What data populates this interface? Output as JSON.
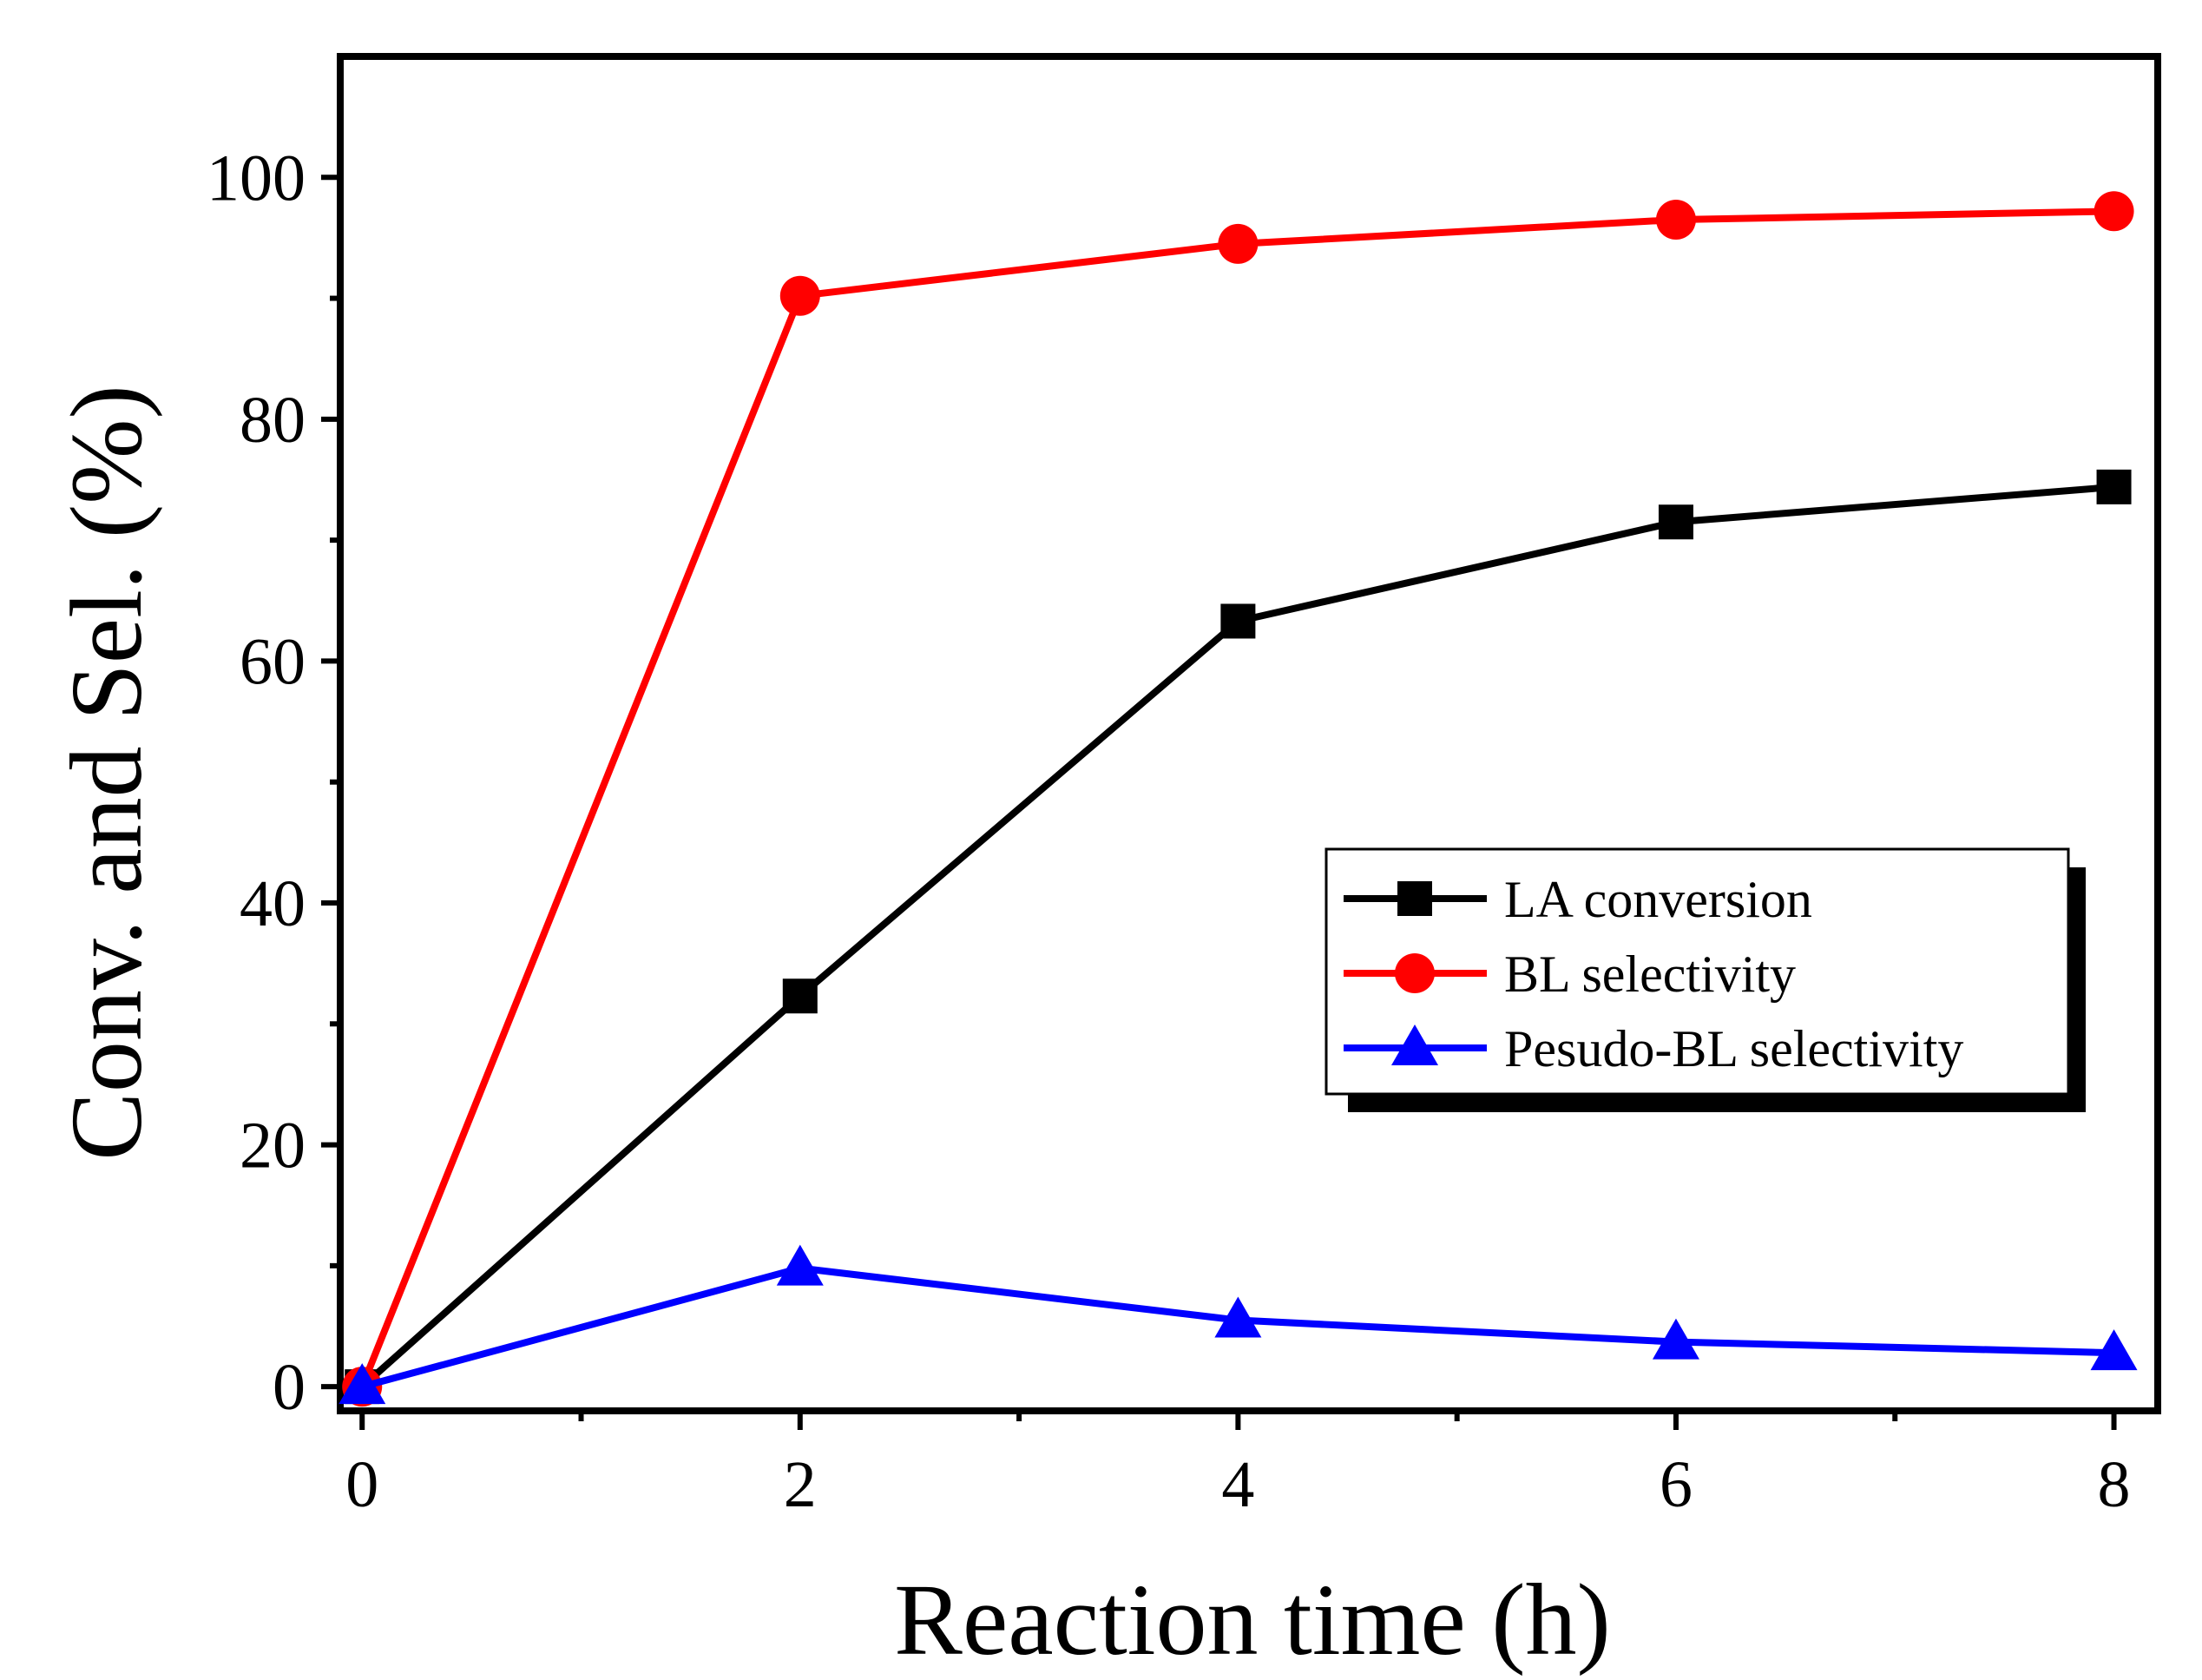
{
  "chart_data": {
    "type": "line",
    "title": "",
    "xlabel": "Reaction time (h)",
    "ylabel": "Conv. and Sel. (%)",
    "xlim": [
      -0.1,
      8.2
    ],
    "ylim": [
      -2,
      110
    ],
    "xticks": [
      0,
      2,
      4,
      6,
      8
    ],
    "xtick_labels": [
      "0",
      "2",
      "4",
      "6",
      "8"
    ],
    "xminor": [
      1,
      3,
      5,
      7
    ],
    "yticks": [
      0,
      20,
      40,
      60,
      80,
      100
    ],
    "ytick_labels": [
      "0",
      "20",
      "40",
      "60",
      "80",
      "100"
    ],
    "yminor": [
      10,
      30,
      50,
      70,
      90
    ],
    "grid": false,
    "legend_position": "center-right",
    "x": [
      0,
      2,
      4,
      6,
      8
    ],
    "series": [
      {
        "name": "LA conversion",
        "values": [
          0,
          32.3,
          63.3,
          71.5,
          74.4
        ],
        "color": "#000000",
        "marker": "square"
      },
      {
        "name": "BL selectivity",
        "values": [
          0,
          90.2,
          94.5,
          96.5,
          97.2
        ],
        "color": "#ff0000",
        "marker": "circle"
      },
      {
        "name": "Pesudo-BL selectivity",
        "values": [
          0,
          9.8,
          5.5,
          3.7,
          2.8
        ],
        "color": "#0000ff",
        "marker": "triangle"
      }
    ]
  }
}
